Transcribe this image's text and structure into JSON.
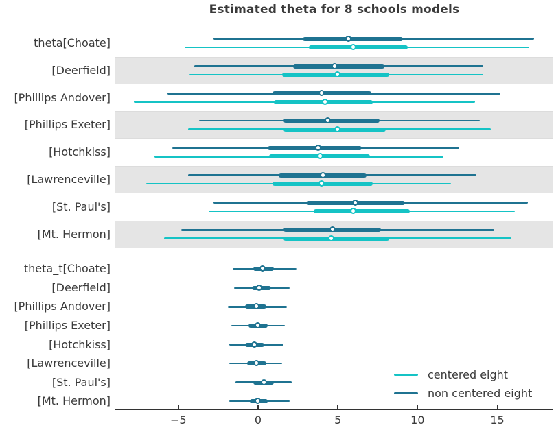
{
  "chart_data": {
    "type": "forest",
    "title": "Estimated theta for 8 schools models",
    "legend": [
      {
        "label": "centered eight",
        "color": "#15c3c5"
      },
      {
        "label": "non centered eight",
        "color": "#1f7391"
      }
    ],
    "x_axis": {
      "ticks": [
        -5,
        0,
        5,
        10,
        15
      ],
      "tick_labels": [
        "−5",
        "0",
        "5",
        "10",
        "15"
      ],
      "range": [
        -8.95,
        18.5
      ],
      "grid": false
    },
    "colors": {
      "band": "#e5e5e5",
      "axis": "#333333",
      "text": "#3a3a3a",
      "point_face": "#ffffff"
    },
    "sections": [
      {
        "name": "theta",
        "rows": [
          {
            "label": "theta[Choate]",
            "shaded": false,
            "intervals": [
              {
                "series": "non centered eight",
                "outer": [
                  -2.8,
                  17.3
                ],
                "inner": [
                  2.8,
                  9.1
                ],
                "point": 5.7
              },
              {
                "series": "centered eight",
                "outer": [
                  -4.6,
                  17.0
                ],
                "inner": [
                  3.2,
                  9.4
                ],
                "point": 6.0
              }
            ]
          },
          {
            "label": "[Deerfield]",
            "shaded": true,
            "intervals": [
              {
                "series": "non centered eight",
                "outer": [
                  -4.0,
                  14.1
                ],
                "inner": [
                  2.2,
                  7.9
                ],
                "point": 4.8
              },
              {
                "series": "centered eight",
                "outer": [
                  -4.3,
                  14.1
                ],
                "inner": [
                  1.5,
                  8.2
                ],
                "point": 5.0
              }
            ]
          },
          {
            "label": "[Phillips Andover]",
            "shaded": false,
            "intervals": [
              {
                "series": "non centered eight",
                "outer": [
                  -5.7,
                  15.2
                ],
                "inner": [
                  0.9,
                  7.1
                ],
                "point": 4.0
              },
              {
                "series": "centered eight",
                "outer": [
                  -7.8,
                  13.6
                ],
                "inner": [
                  1.0,
                  7.2
                ],
                "point": 4.2
              }
            ]
          },
          {
            "label": "[Phillips Exeter]",
            "shaded": true,
            "intervals": [
              {
                "series": "non centered eight",
                "outer": [
                  -3.7,
                  13.9
                ],
                "inner": [
                  1.6,
                  7.6
                ],
                "point": 4.4
              },
              {
                "series": "centered eight",
                "outer": [
                  -4.4,
                  14.6
                ],
                "inner": [
                  1.6,
                  8.0
                ],
                "point": 5.0
              }
            ]
          },
          {
            "label": "[Hotchkiss]",
            "shaded": false,
            "intervals": [
              {
                "series": "non centered eight",
                "outer": [
                  -5.4,
                  12.6
                ],
                "inner": [
                  0.6,
                  6.5
                ],
                "point": 3.8
              },
              {
                "series": "centered eight",
                "outer": [
                  -6.5,
                  11.6
                ],
                "inner": [
                  0.7,
                  7.0
                ],
                "point": 3.9
              }
            ]
          },
          {
            "label": "[Lawrenceville]",
            "shaded": true,
            "intervals": [
              {
                "series": "non centered eight",
                "outer": [
                  -4.4,
                  13.7
                ],
                "inner": [
                  1.3,
                  6.8
                ],
                "point": 4.1
              },
              {
                "series": "centered eight",
                "outer": [
                  -7.0,
                  12.1
                ],
                "inner": [
                  0.9,
                  7.2
                ],
                "point": 4.0
              }
            ]
          },
          {
            "label": "[St. Paul's]",
            "shaded": false,
            "intervals": [
              {
                "series": "non centered eight",
                "outer": [
                  -2.8,
                  16.9
                ],
                "inner": [
                  3.0,
                  9.2
                ],
                "point": 6.1
              },
              {
                "series": "centered eight",
                "outer": [
                  -3.1,
                  16.1
                ],
                "inner": [
                  3.5,
                  9.5
                ],
                "point": 6.0
              }
            ]
          },
          {
            "label": "[Mt. Hermon]",
            "shaded": true,
            "intervals": [
              {
                "series": "non centered eight",
                "outer": [
                  -4.8,
                  14.8
                ],
                "inner": [
                  1.6,
                  7.7
                ],
                "point": 4.7
              },
              {
                "series": "centered eight",
                "outer": [
                  -5.9,
                  15.9
                ],
                "inner": [
                  1.6,
                  8.2
                ],
                "point": 4.6
              }
            ]
          }
        ]
      },
      {
        "name": "theta_t",
        "rows": [
          {
            "label": "theta_t[Choate]",
            "shaded": false,
            "intervals": [
              {
                "series": "non centered eight",
                "outer": [
                  -1.6,
                  2.4
                ],
                "inner": [
                  -0.3,
                  1.0
                ],
                "point": 0.3
              }
            ]
          },
          {
            "label": "[Deerfield]",
            "shaded": false,
            "intervals": [
              {
                "series": "non centered eight",
                "outer": [
                  -1.5,
                  2.0
                ],
                "inner": [
                  -0.4,
                  0.8
                ],
                "point": 0.1
              }
            ]
          },
          {
            "label": "[Phillips Andover]",
            "shaded": false,
            "intervals": [
              {
                "series": "non centered eight",
                "outer": [
                  -1.9,
                  1.8
                ],
                "inner": [
                  -0.8,
                  0.5
                ],
                "point": -0.1
              }
            ]
          },
          {
            "label": "[Phillips Exeter]",
            "shaded": false,
            "intervals": [
              {
                "series": "non centered eight",
                "outer": [
                  -1.7,
                  1.7
                ],
                "inner": [
                  -0.6,
                  0.6
                ],
                "point": 0.0
              }
            ]
          },
          {
            "label": "[Hotchkiss]",
            "shaded": false,
            "intervals": [
              {
                "series": "non centered eight",
                "outer": [
                  -1.8,
                  1.6
                ],
                "inner": [
                  -0.8,
                  0.4
                ],
                "point": -0.2
              }
            ]
          },
          {
            "label": "[Lawrenceville]",
            "shaded": false,
            "intervals": [
              {
                "series": "non centered eight",
                "outer": [
                  -1.8,
                  1.5
                ],
                "inner": [
                  -0.7,
                  0.5
                ],
                "point": -0.1
              }
            ]
          },
          {
            "label": "[St. Paul's]",
            "shaded": false,
            "intervals": [
              {
                "series": "non centered eight",
                "outer": [
                  -1.4,
                  2.1
                ],
                "inner": [
                  -0.3,
                  1.0
                ],
                "point": 0.4
              }
            ]
          },
          {
            "label": "[Mt. Hermon]",
            "shaded": false,
            "intervals": [
              {
                "series": "non centered eight",
                "outer": [
                  -1.8,
                  2.0
                ],
                "inner": [
                  -0.5,
                  0.6
                ],
                "point": 0.0
              }
            ]
          }
        ]
      }
    ]
  }
}
